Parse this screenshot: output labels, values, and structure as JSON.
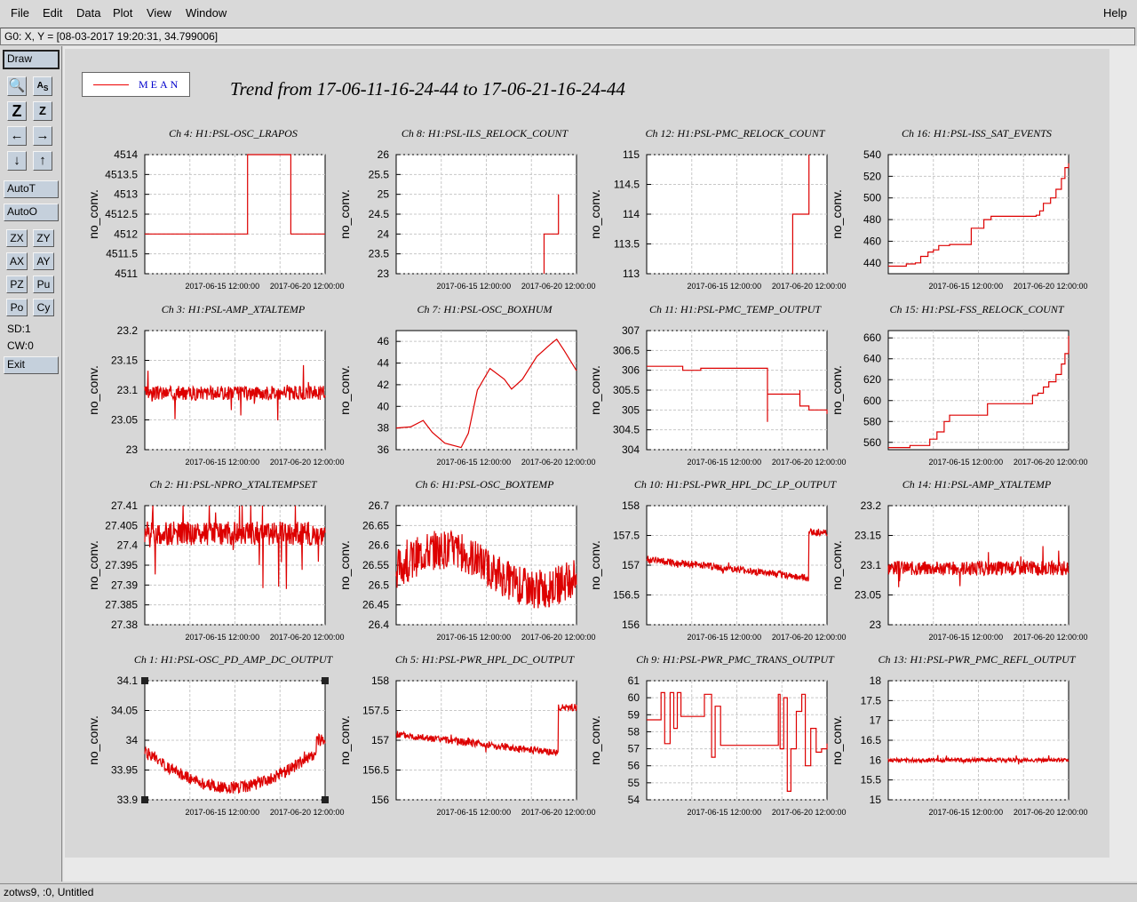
{
  "menubar": {
    "items": [
      {
        "label": "File",
        "name": "file"
      },
      {
        "label": "Edit",
        "name": "edit"
      },
      {
        "label": "Data",
        "name": "data"
      },
      {
        "label": "Plot",
        "name": "plot"
      },
      {
        "label": "View",
        "name": "view"
      },
      {
        "label": "Window",
        "name": "window"
      }
    ],
    "help": "Help"
  },
  "status_line": "G0: X, Y = [08-03-2017 19:20:31, 34.799006]",
  "sidebar": {
    "draw": "Draw",
    "autot": "AutoT",
    "autoo": "AutoO",
    "pair_buttons": [
      [
        "ZX",
        "ZY"
      ],
      [
        "AX",
        "AY"
      ],
      [
        "PZ",
        "Pu"
      ],
      [
        "Po",
        "Cy"
      ]
    ],
    "sd": "SD:1",
    "cw": "CW:0",
    "exit": "Exit",
    "icons": [
      "magnify-icon",
      "text-size-icon",
      "zoom-z-large-icon",
      "zoom-z-small-icon",
      "arrow-left-icon",
      "arrow-right-icon",
      "arrow-down-icon",
      "arrow-up-icon"
    ]
  },
  "legend": {
    "label": "MEAN",
    "color": "#dd0000"
  },
  "trend_title": "Trend from 17-06-11-16-24-44 to 17-06-21-16-24-44",
  "bottom_status": "zotws9, :0, Untitled",
  "chart_data": [
    {
      "type": "line",
      "title": "Ch 4: H1:PSL-OSC_LRAPOS",
      "ylabel": "no_conv.",
      "yticks": [
        "4511",
        "4511.5",
        "4512",
        "4512.5",
        "4513",
        "4513.5",
        "4514"
      ],
      "ylim": [
        4511,
        4514
      ],
      "xticks": [
        "2017-06-15 12:00:00",
        "2017-06-20 12:00:00"
      ],
      "series": [
        {
          "style": "step",
          "values": [
            [
              0,
              4512
            ],
            [
              0.57,
              4512
            ],
            [
              0.57,
              4514
            ],
            [
              0.81,
              4514
            ],
            [
              0.81,
              4512
            ],
            [
              1,
              4512
            ]
          ]
        }
      ]
    },
    {
      "type": "line",
      "title": "Ch 8: H1:PSL-ILS_RELOCK_COUNT",
      "ylabel": "no_conv.",
      "yticks": [
        "23",
        "23.5",
        "24",
        "24.5",
        "25",
        "25.5",
        "26"
      ],
      "ylim": [
        23,
        26
      ],
      "xticks": [
        "2017-06-15 12:00:00",
        "2017-06-20 12:00:00"
      ],
      "series": [
        {
          "style": "step",
          "values": [
            [
              0.82,
              23
            ],
            [
              0.82,
              24
            ],
            [
              0.9,
              24
            ],
            [
              0.9,
              25
            ]
          ]
        }
      ]
    },
    {
      "type": "line",
      "title": "Ch 12: H1:PSL-PMC_RELOCK_COUNT",
      "ylabel": "no_conv.",
      "yticks": [
        "113",
        "113.5",
        "114",
        "114.5",
        "115"
      ],
      "ylim": [
        113,
        115
      ],
      "xticks": [
        "2017-06-15 12:00:00",
        "2017-06-20 12:00:00"
      ],
      "series": [
        {
          "style": "step",
          "values": [
            [
              0.81,
              113
            ],
            [
              0.81,
              114
            ],
            [
              0.9,
              114
            ],
            [
              0.9,
              115
            ]
          ]
        }
      ]
    },
    {
      "type": "line",
      "title": "Ch 16: H1:PSL-ISS_SAT_EVENTS",
      "ylabel": "no_conv.",
      "yticks": [
        "440",
        "460",
        "480",
        "500",
        "520",
        "540"
      ],
      "ylim": [
        430,
        540
      ],
      "xticks": [
        "2017-06-15 12:00:00",
        "2017-06-20 12:00:00"
      ],
      "series": [
        {
          "style": "step",
          "values": [
            [
              0,
              437
            ],
            [
              0.08,
              437
            ],
            [
              0.1,
              439
            ],
            [
              0.15,
              440
            ],
            [
              0.18,
              446
            ],
            [
              0.22,
              450
            ],
            [
              0.25,
              452
            ],
            [
              0.28,
              456
            ],
            [
              0.34,
              457
            ],
            [
              0.42,
              457
            ],
            [
              0.46,
              472
            ],
            [
              0.53,
              480
            ],
            [
              0.57,
              483
            ],
            [
              0.8,
              483
            ],
            [
              0.82,
              484
            ],
            [
              0.84,
              488
            ],
            [
              0.86,
              495
            ],
            [
              0.9,
              500
            ],
            [
              0.93,
              508
            ],
            [
              0.96,
              518
            ],
            [
              0.98,
              528
            ],
            [
              1,
              532
            ]
          ]
        }
      ]
    },
    {
      "type": "line",
      "title": "Ch 3: H1:PSL-AMP_XTALTEMP",
      "ylabel": "no_conv.",
      "yticks": [
        "23",
        "23.05",
        "23.1",
        "23.15",
        "23.2"
      ],
      "ylim": [
        23,
        23.2
      ],
      "xticks": [
        "2017-06-15 12:00:00",
        "2017-06-20 12:00:00"
      ],
      "noise": {
        "base": 23.095,
        "amp": 0.012,
        "spike": 0.04,
        "seed": 3
      }
    },
    {
      "type": "line",
      "title": "Ch 7: H1:PSL-OSC_BOXHUM",
      "ylabel": "no_conv.",
      "yticks": [
        "36",
        "38",
        "40",
        "42",
        "44",
        "46"
      ],
      "ylim": [
        36,
        47
      ],
      "xticks": [
        "2017-06-15 12:00:00",
        "2017-06-20 12:00:00"
      ],
      "series": [
        {
          "style": "line",
          "values": [
            [
              0,
              38
            ],
            [
              0.08,
              38.1
            ],
            [
              0.15,
              38.7
            ],
            [
              0.2,
              37.6
            ],
            [
              0.27,
              36.6
            ],
            [
              0.36,
              36.2
            ],
            [
              0.4,
              37.5
            ],
            [
              0.45,
              41.5
            ],
            [
              0.52,
              43.5
            ],
            [
              0.6,
              42.5
            ],
            [
              0.64,
              41.6
            ],
            [
              0.7,
              42.5
            ],
            [
              0.78,
              44.6
            ],
            [
              0.86,
              45.8
            ],
            [
              0.89,
              46.2
            ],
            [
              0.93,
              45.2
            ],
            [
              1,
              43.3
            ]
          ]
        }
      ]
    },
    {
      "type": "line",
      "title": "Ch 11: H1:PSL-PMC_TEMP_OUTPUT",
      "ylabel": "no_conv.",
      "yticks": [
        "304",
        "304.5",
        "305",
        "305.5",
        "306",
        "306.5",
        "307"
      ],
      "ylim": [
        304,
        307
      ],
      "xticks": [
        "2017-06-15 12:00:00",
        "2017-06-20 12:00:00"
      ],
      "series": [
        {
          "style": "step",
          "values": [
            [
              0,
              306.1
            ],
            [
              0.15,
              306.1
            ],
            [
              0.2,
              306
            ],
            [
              0.3,
              306.05
            ],
            [
              0.5,
              306.05
            ],
            [
              0.67,
              306.05
            ],
            [
              0.67,
              304.7
            ],
            [
              0.67,
              305.4
            ],
            [
              0.85,
              305.5
            ],
            [
              0.85,
              305.1
            ],
            [
              0.9,
              305.0
            ],
            [
              1,
              304.9
            ]
          ]
        }
      ]
    },
    {
      "type": "line",
      "title": "Ch 15: H1:PSL-FSS_RELOCK_COUNT",
      "ylabel": "no_conv.",
      "yticks": [
        "560",
        "580",
        "600",
        "620",
        "640",
        "660"
      ],
      "ylim": [
        553,
        667
      ],
      "xticks": [
        "2017-06-15 12:00:00",
        "2017-06-20 12:00:00"
      ],
      "series": [
        {
          "style": "step",
          "values": [
            [
              0,
              555
            ],
            [
              0.09,
              555
            ],
            [
              0.12,
              557
            ],
            [
              0.2,
              557
            ],
            [
              0.23,
              563
            ],
            [
              0.27,
              570
            ],
            [
              0.31,
              580
            ],
            [
              0.34,
              586
            ],
            [
              0.54,
              586
            ],
            [
              0.55,
              597
            ],
            [
              0.8,
              597
            ],
            [
              0.8,
              605
            ],
            [
              0.83,
              607
            ],
            [
              0.86,
              613
            ],
            [
              0.89,
              618
            ],
            [
              0.93,
              625
            ],
            [
              0.96,
              635
            ],
            [
              0.98,
              645
            ],
            [
              1,
              662
            ]
          ]
        }
      ]
    },
    {
      "type": "line",
      "title": "Ch 2: H1:PSL-NPRO_XTALTEMPSET",
      "ylabel": "no_conv.",
      "yticks": [
        "27.38",
        "27.385",
        "27.39",
        "27.395",
        "27.4",
        "27.405",
        "27.41"
      ],
      "ylim": [
        27.38,
        27.41
      ],
      "xticks": [
        "2017-06-15 12:00:00",
        "2017-06-20 12:00:00"
      ],
      "noise": {
        "base": 27.403,
        "amp": 0.003,
        "spike": 0.016,
        "seed": 2
      }
    },
    {
      "type": "line",
      "title": "Ch 6: H1:PSL-OSC_BOXTEMP",
      "ylabel": "no_conv.",
      "yticks": [
        "26.4",
        "26.45",
        "26.5",
        "26.55",
        "26.6",
        "26.65",
        "26.7"
      ],
      "ylim": [
        26.4,
        26.7
      ],
      "xticks": [
        "2017-06-15 12:00:00",
        "2017-06-20 12:00:00"
      ],
      "noise": {
        "base": 26.54,
        "amp": 0.05,
        "spike": 0.04,
        "seed": 6
      }
    },
    {
      "type": "line",
      "title": "Ch 10: H1:PSL-PWR_HPL_DC_LP_OUTPUT",
      "ylabel": "no_conv.",
      "yticks": [
        "156",
        "156.5",
        "157",
        "157.5",
        "158"
      ],
      "ylim": [
        156,
        158
      ],
      "xticks": [
        "2017-06-15 12:00:00",
        "2017-06-20 12:00:00"
      ],
      "noise": {
        "base": 157.1,
        "amp": 0.06,
        "spike": 0.08,
        "seed": 10
      }
    },
    {
      "type": "line",
      "title": "Ch 14: H1:PSL-AMP_XTALTEMP",
      "ylabel": "no_conv.",
      "yticks": [
        "23",
        "23.05",
        "23.1",
        "23.15",
        "23.2"
      ],
      "ylim": [
        23,
        23.2
      ],
      "xticks": [
        "2017-06-15 12:00:00",
        "2017-06-20 12:00:00"
      ],
      "noise": {
        "base": 23.095,
        "amp": 0.012,
        "spike": 0.04,
        "seed": 14
      }
    },
    {
      "type": "line",
      "title": "Ch 1: H1:PSL-OSC_PD_AMP_DC_OUTPUT",
      "ylabel": "no_conv.",
      "yticks": [
        "33.9",
        "33.95",
        "34",
        "34.05",
        "34.1"
      ],
      "ylim": [
        33.9,
        34.1
      ],
      "xticks": [
        "2017-06-15 12:00:00",
        "2017-06-20 12:00:00"
      ],
      "noise": {
        "base": 33.98,
        "amp": 0.01,
        "spike": 0.015,
        "seed": 1
      }
    },
    {
      "type": "line",
      "title": "Ch 5: H1:PSL-PWR_HPL_DC_OUTPUT",
      "ylabel": "no_conv.",
      "yticks": [
        "156",
        "156.5",
        "157",
        "157.5",
        "158"
      ],
      "ylim": [
        156,
        158
      ],
      "xticks": [
        "2017-06-15 12:00:00",
        "2017-06-20 12:00:00"
      ],
      "noise": {
        "base": 157.1,
        "amp": 0.06,
        "spike": 0.08,
        "seed": 5
      }
    },
    {
      "type": "line",
      "title": "Ch 9: H1:PSL-PWR_PMC_TRANS_OUTPUT",
      "ylabel": "no_conv.",
      "yticks": [
        "54",
        "55",
        "56",
        "57",
        "58",
        "59",
        "60",
        "61"
      ],
      "ylim": [
        54,
        61
      ],
      "xticks": [
        "2017-06-15 12:00:00",
        "2017-06-20 12:00:00"
      ],
      "series": [
        {
          "style": "step",
          "values": [
            [
              0,
              58.7
            ],
            [
              0.08,
              58.7
            ],
            [
              0.08,
              60.3
            ],
            [
              0.1,
              57.3
            ],
            [
              0.13,
              60.3
            ],
            [
              0.15,
              58.2
            ],
            [
              0.17,
              60.3
            ],
            [
              0.19,
              58.9
            ],
            [
              0.3,
              58.9
            ],
            [
              0.32,
              60.2
            ],
            [
              0.36,
              56.5
            ],
            [
              0.38,
              59.5
            ],
            [
              0.41,
              57.2
            ],
            [
              0.55,
              57.2
            ],
            [
              0.72,
              57.2
            ],
            [
              0.73,
              60.2
            ],
            [
              0.74,
              57.0
            ],
            [
              0.76,
              60.0
            ],
            [
              0.78,
              54.5
            ],
            [
              0.8,
              57.0
            ],
            [
              0.83,
              59.2
            ],
            [
              0.86,
              60.2
            ],
            [
              0.88,
              56.0
            ],
            [
              0.91,
              58.2
            ],
            [
              0.94,
              56.8
            ],
            [
              0.97,
              57.0
            ],
            [
              1,
              57.3
            ]
          ]
        }
      ]
    },
    {
      "type": "line",
      "title": "Ch 13: H1:PSL-PWR_PMC_REFL_OUTPUT",
      "ylabel": "no_conv.",
      "yticks": [
        "15",
        "15.5",
        "16",
        "16.5",
        "17",
        "17.5",
        "18"
      ],
      "ylim": [
        15,
        18
      ],
      "xticks": [
        "2017-06-15 12:00:00",
        "2017-06-20 12:00:00"
      ],
      "noise": {
        "base": 16.0,
        "amp": 0.05,
        "spike": 0.1,
        "seed": 13
      }
    }
  ]
}
